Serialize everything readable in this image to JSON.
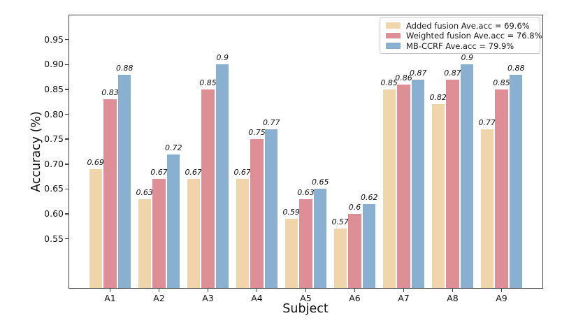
{
  "figure": {
    "background": "#ffffff",
    "spine_color": "#444444"
  },
  "chart_data": {
    "type": "bar",
    "title": "",
    "xlabel": "Subject",
    "ylabel": "Accuracy (%)",
    "categories": [
      "A1",
      "A2",
      "A3",
      "A4",
      "A5",
      "A6",
      "A7",
      "A8",
      "A9"
    ],
    "series": [
      {
        "name": "Added fusion",
        "legend_label": "Added fusion Ave.acc = 69.6%",
        "color": "#EFD5A9",
        "values": [
          0.69,
          0.63,
          0.67,
          0.67,
          0.59,
          0.57,
          0.85,
          0.82,
          0.77
        ]
      },
      {
        "name": "Weighted fusion",
        "legend_label": "Weighted fusion Ave.acc = 76.8%",
        "color": "#DE8F96",
        "values": [
          0.83,
          0.67,
          0.85,
          0.75,
          0.63,
          0.6,
          0.86,
          0.87,
          0.85
        ]
      },
      {
        "name": "MB-CCRF",
        "legend_label": "MB-CCRF Ave.acc = 79.9%",
        "color": "#89AFD1",
        "values": [
          0.88,
          0.72,
          0.9,
          0.77,
          0.65,
          0.62,
          0.87,
          0.9,
          0.88
        ]
      }
    ],
    "ylim": [
      0.45,
      1.0
    ],
    "yticks": [
      0.55,
      0.6,
      0.65,
      0.7,
      0.75,
      0.8,
      0.85,
      0.9,
      0.95
    ],
    "ytick_labels": [
      "0.55",
      "0.60",
      "0.65",
      "0.70",
      "0.75",
      "0.80",
      "0.85",
      "0.90",
      "0.95"
    ],
    "grid": false,
    "legend_position": "upper right",
    "value_label_style": "italic, above each bar"
  }
}
